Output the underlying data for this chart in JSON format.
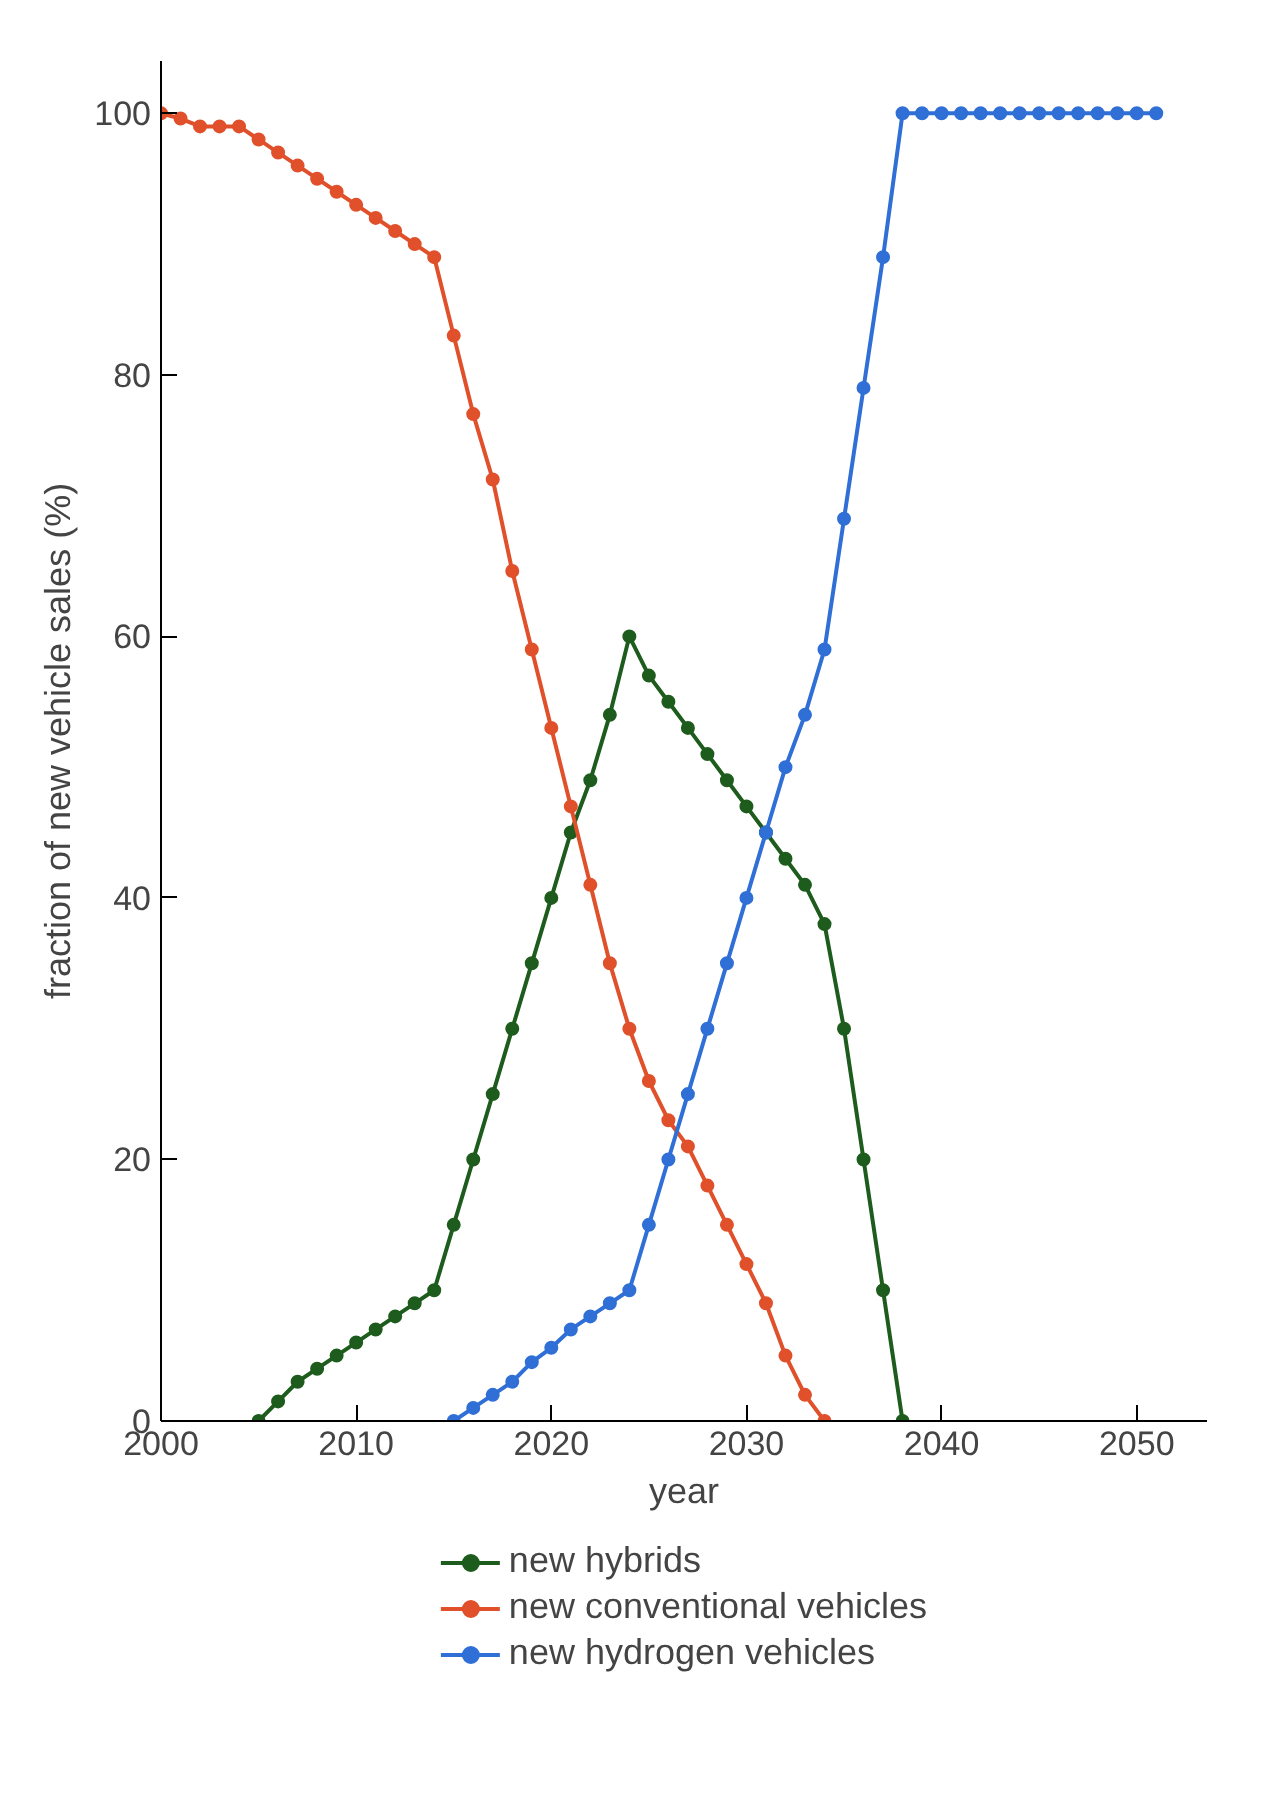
{
  "chart_data": {
    "type": "line",
    "xlabel": "year",
    "ylabel": "fraction of new vehicle sales (%)",
    "xlim": [
      2000,
      2053.6
    ],
    "xticks": [
      2000,
      2010,
      2020,
      2030,
      2040,
      2050
    ],
    "ylim": [
      0,
      104
    ],
    "yticks": [
      0,
      20,
      40,
      60,
      80,
      100
    ],
    "grid": false,
    "legend": "bottom",
    "marker": "circle",
    "line_style": "solid",
    "series": [
      {
        "name": "new hybrids",
        "color": "#1e5c1e",
        "x": [
          2005,
          2006,
          2007,
          2008,
          2009,
          2010,
          2011,
          2012,
          2013,
          2014,
          2015,
          2016,
          2017,
          2018,
          2019,
          2020,
          2021,
          2022,
          2023,
          2024,
          2025,
          2026,
          2027,
          2028,
          2029,
          2030,
          2031,
          2032,
          2033,
          2034,
          2035,
          2036,
          2037,
          2038
        ],
        "values": [
          0,
          1.5,
          3,
          4,
          5,
          6,
          7,
          8,
          9,
          10,
          15,
          20,
          25,
          30,
          35,
          40,
          45,
          49,
          54,
          60,
          57,
          55,
          53,
          51,
          49,
          47,
          45,
          43,
          41,
          38,
          30,
          20,
          10,
          0
        ]
      },
      {
        "name": "new conventional vehicles",
        "color": "#e0502a",
        "x": [
          2000,
          2001,
          2002,
          2003,
          2004,
          2005,
          2006,
          2007,
          2008,
          2009,
          2010,
          2011,
          2012,
          2013,
          2014,
          2015,
          2016,
          2017,
          2018,
          2019,
          2020,
          2021,
          2022,
          2023,
          2024,
          2025,
          2026,
          2027,
          2028,
          2029,
          2030,
          2031,
          2032,
          2033,
          2034
        ],
        "values": [
          100,
          99.6,
          99,
          99,
          99,
          98,
          97,
          96,
          95,
          94,
          93,
          92,
          91,
          90,
          89,
          83,
          77,
          72,
          65,
          59,
          53,
          47,
          41,
          35,
          30,
          26,
          23,
          21,
          18,
          15,
          12,
          9,
          5,
          2,
          0
        ]
      },
      {
        "name": "new hydrogen vehicles",
        "color": "#2f6fd6",
        "x": [
          2015,
          2016,
          2017,
          2018,
          2019,
          2020,
          2021,
          2022,
          2023,
          2024,
          2025,
          2026,
          2027,
          2028,
          2029,
          2030,
          2031,
          2032,
          2033,
          2034,
          2035,
          2036,
          2037,
          2038,
          2039,
          2040,
          2041,
          2042,
          2043,
          2044,
          2045,
          2046,
          2047,
          2048,
          2049,
          2050,
          2051
        ],
        "values": [
          0,
          1,
          2,
          3,
          4.5,
          5.6,
          7,
          8,
          9,
          10,
          15,
          20,
          25,
          30,
          35,
          40,
          45,
          50,
          54,
          59,
          69,
          79,
          89,
          100,
          100,
          100,
          100,
          100,
          100,
          100,
          100,
          100,
          100,
          100,
          100,
          100,
          100
        ]
      }
    ]
  }
}
